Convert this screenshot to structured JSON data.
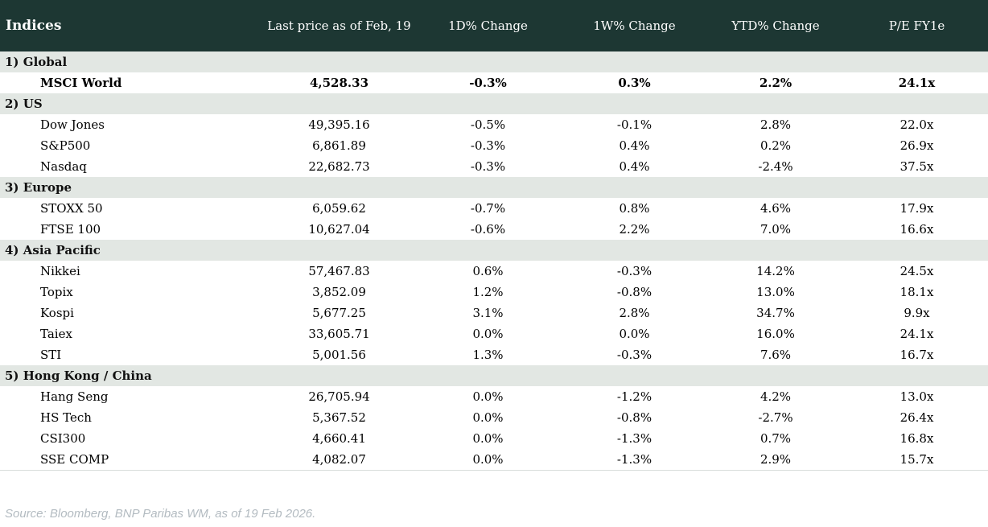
{
  "colors": {
    "header_bg": "#1d3733",
    "section_bg": "#e2e7e3",
    "negative": "#c00000",
    "positive": "#008000",
    "neutral": "#000000",
    "footer_text": "#b3bbc1"
  },
  "footer": {
    "source": "Source: Bloomberg, BNP Paribas WM, as of 19 Feb 2026."
  },
  "chart_data": {
    "type": "table",
    "title": "Indices",
    "column_headers": [
      "Indices",
      "Last price as of Feb, 19",
      "1D% Change",
      "1W% Change",
      "YTD% Change",
      "P/E FY1e"
    ],
    "sections": [
      {
        "label": "1) Global",
        "rows": [
          {
            "name": "MSCI World",
            "bold": true,
            "last_price": "4,528.33",
            "d1": "-0.3%",
            "w1": "0.3%",
            "ytd": "2.2%",
            "pe": "24.1x"
          }
        ]
      },
      {
        "label": "2) US",
        "rows": [
          {
            "name": "Dow Jones",
            "bold": false,
            "last_price": "49,395.16",
            "d1": "-0.5%",
            "w1": "-0.1%",
            "ytd": "2.8%",
            "pe": "22.0x"
          },
          {
            "name": "S&P500",
            "bold": false,
            "last_price": "6,861.89",
            "d1": "-0.3%",
            "w1": "0.4%",
            "ytd": "0.2%",
            "pe": "26.9x"
          },
          {
            "name": "Nasdaq",
            "bold": false,
            "last_price": "22,682.73",
            "d1": "-0.3%",
            "w1": "0.4%",
            "ytd": "-2.4%",
            "pe": "37.5x"
          }
        ]
      },
      {
        "label": "3) Europe",
        "rows": [
          {
            "name": "STOXX 50",
            "bold": false,
            "last_price": "6,059.62",
            "d1": "-0.7%",
            "w1": "0.8%",
            "ytd": "4.6%",
            "pe": "17.9x"
          },
          {
            "name": "FTSE 100",
            "bold": false,
            "last_price": "10,627.04",
            "d1": "-0.6%",
            "w1": "2.2%",
            "ytd": "7.0%",
            "pe": "16.6x"
          }
        ]
      },
      {
        "label": "4) Asia Pacific",
        "rows": [
          {
            "name": "Nikkei",
            "bold": false,
            "last_price": "57,467.83",
            "d1": "0.6%",
            "w1": "-0.3%",
            "ytd": "14.2%",
            "pe": "24.5x"
          },
          {
            "name": "Topix",
            "bold": false,
            "last_price": "3,852.09",
            "d1": "1.2%",
            "w1": "-0.8%",
            "ytd": "13.0%",
            "pe": "18.1x"
          },
          {
            "name": "Kospi",
            "bold": false,
            "last_price": "5,677.25",
            "d1": "3.1%",
            "w1": "2.8%",
            "ytd": "34.7%",
            "pe": "9.9x"
          },
          {
            "name": "Taiex",
            "bold": false,
            "last_price": "33,605.71",
            "d1": "0.0%",
            "w1": "0.0%",
            "ytd": "16.0%",
            "pe": "24.1x"
          },
          {
            "name": "STI",
            "bold": false,
            "last_price": "5,001.56",
            "d1": "1.3%",
            "w1": "-0.3%",
            "ytd": "7.6%",
            "pe": "16.7x"
          }
        ]
      },
      {
        "label": "5) Hong Kong / China",
        "rows": [
          {
            "name": "Hang Seng",
            "bold": false,
            "last_price": "26,705.94",
            "d1": "0.0%",
            "w1": "-1.2%",
            "ytd": "4.2%",
            "pe": "13.0x"
          },
          {
            "name": "HS Tech",
            "bold": false,
            "last_price": "5,367.52",
            "d1": "0.0%",
            "w1": "-0.8%",
            "ytd": "-2.7%",
            "pe": "26.4x"
          },
          {
            "name": "CSI300",
            "bold": false,
            "last_price": "4,660.41",
            "d1": "0.0%",
            "w1": "-1.3%",
            "ytd": "0.7%",
            "pe": "16.8x"
          },
          {
            "name": "SSE COMP",
            "bold": false,
            "last_price": "4,082.07",
            "d1": "0.0%",
            "w1": "-1.3%",
            "ytd": "2.9%",
            "pe": "15.7x"
          }
        ]
      }
    ]
  }
}
